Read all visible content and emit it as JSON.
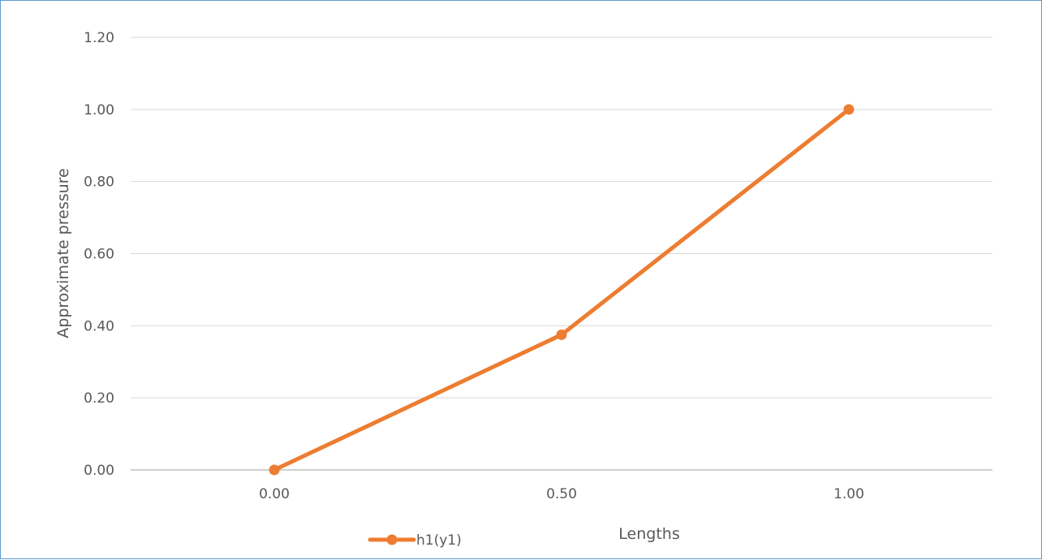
{
  "chart_data": {
    "type": "line",
    "title": "",
    "xlabel": "Lengths",
    "ylabel": "Approximate pressure",
    "x_ticks": [
      "0.00",
      "0.50",
      "1.00"
    ],
    "y_ticks": [
      "0.00",
      "0.20",
      "0.40",
      "0.60",
      "0.80",
      "1.00",
      "1.20"
    ],
    "xlim": [
      -0.25,
      1.25
    ],
    "ylim": [
      0,
      1.2
    ],
    "grid": true,
    "legend_position": "bottom",
    "series": [
      {
        "name": "h1(y1)",
        "color": "#ed7d31",
        "marker": "circle",
        "x": [
          0.0,
          0.5,
          1.0
        ],
        "y": [
          0.0,
          0.375,
          1.0
        ]
      }
    ]
  }
}
